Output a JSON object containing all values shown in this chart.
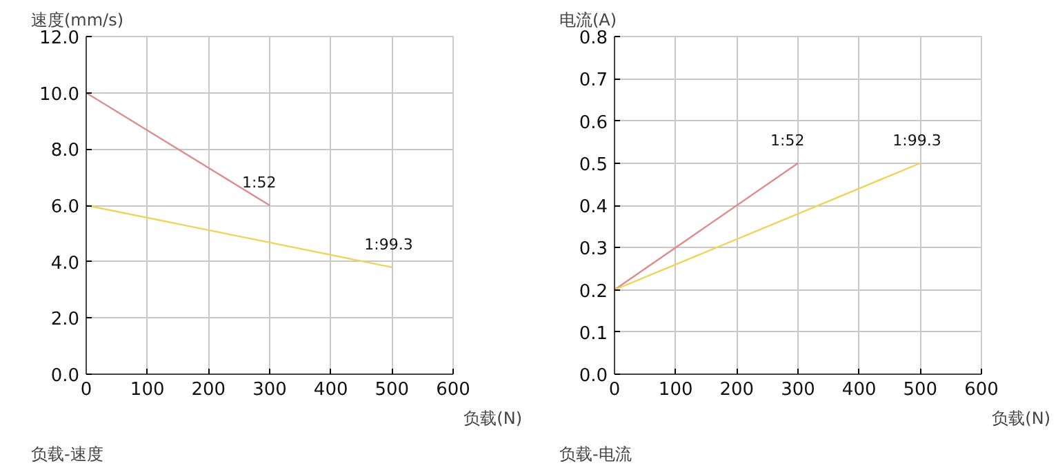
{
  "chart_data": [
    {
      "type": "line",
      "ylabel": "速度(mm/s)",
      "xlabel": "负载(N)",
      "annotations": [
        "负载-速度"
      ],
      "xlim": [
        0,
        600
      ],
      "xticks": [
        0,
        100,
        200,
        300,
        400,
        500,
        600
      ],
      "ylim": [
        0,
        12
      ],
      "yticks": [
        {
          "value": 0,
          "label": "0.0"
        },
        {
          "value": 2,
          "label": "2.0"
        },
        {
          "value": 4,
          "label": "4.0"
        },
        {
          "value": 6,
          "label": "6.0"
        },
        {
          "value": 8,
          "label": "8.0"
        },
        {
          "value": 10,
          "label": "10.0"
        },
        {
          "value": 12,
          "label": "12.0"
        }
      ],
      "grid": true,
      "series": [
        {
          "name": "1:52",
          "color": "#e08a8a",
          "x": [
            0,
            300
          ],
          "values": [
            10,
            6
          ]
        },
        {
          "name": "1:99.3",
          "color": "#f0d45a",
          "x": [
            0,
            500
          ],
          "values": [
            6,
            3.8
          ]
        }
      ]
    },
    {
      "type": "line",
      "ylabel": "电流(A)",
      "xlabel": "负载(N)",
      "annotations": [
        "负载-电流"
      ],
      "xlim": [
        0,
        600
      ],
      "xticks": [
        0,
        100,
        200,
        300,
        400,
        500,
        600
      ],
      "ylim": [
        0,
        0.8
      ],
      "yticks": [
        {
          "value": 0,
          "label": "0.0"
        },
        0.1,
        0.2,
        0.3,
        0.4,
        0.5,
        0.6,
        0.7,
        0.8
      ],
      "grid": true,
      "series": [
        {
          "name": "1:52",
          "color": "#e08a8a",
          "x": [
            0,
            300
          ],
          "values": [
            0.2,
            0.5
          ]
        },
        {
          "name": "1:99.3",
          "color": "#f0d45a",
          "x": [
            0,
            500
          ],
          "values": [
            0.2,
            0.5
          ]
        }
      ]
    }
  ]
}
